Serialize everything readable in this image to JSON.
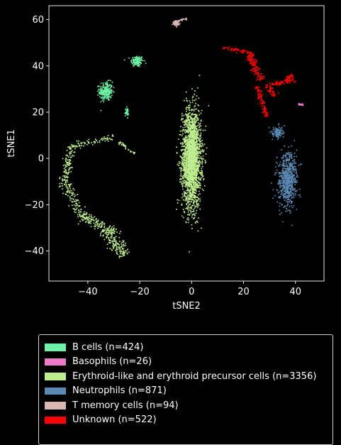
{
  "chart_data": {
    "type": "scatter",
    "title": "",
    "xlabel": "tSNE2",
    "ylabel": "tSNE1",
    "xlim": [
      -55,
      51
    ],
    "ylim": [
      -53,
      66
    ],
    "xticks": [
      "-40",
      "-20",
      "0",
      "20",
      "40"
    ],
    "yticks": [
      "-40",
      "-20",
      "0",
      "20",
      "40",
      "60"
    ],
    "grid": false,
    "legend_position": "below plot",
    "series": [
      {
        "name": "B cells (n=424)",
        "color": "#6ff2a6",
        "n": 424,
        "clusters": [
          {
            "center": [
              -21,
              42
            ],
            "spread": [
              2.2,
              2.2
            ],
            "count": 120
          },
          {
            "center": [
              -33,
              29
            ],
            "spread": [
              2.3,
              3.6
            ],
            "count": 230
          },
          {
            "center": [
              -25,
              20
            ],
            "spread": [
              0.6,
              1.6
            ],
            "count": 40
          }
        ]
      },
      {
        "name": "Basophils (n=26)",
        "color": "#ee7ac8",
        "n": 26,
        "segments": [
          {
            "from": [
              41,
              23.5
            ],
            "to": [
              43,
              23.2
            ],
            "count": 20,
            "width": 0.35
          }
        ]
      },
      {
        "name": "Erythroid-like and erythroid precursor cells (n=3356)",
        "color": "#bfee90",
        "n": 3356,
        "clusters": [
          {
            "center": [
              0,
              0
            ],
            "spread": [
              3.3,
              19
            ],
            "count": 2300
          }
        ],
        "segments": [
          {
            "from": [
              -46,
              6
            ],
            "to": [
              -49,
              -10
            ],
            "count": 120,
            "width": 1.6
          },
          {
            "from": [
              -49,
              -10
            ],
            "to": [
              -42,
              -25
            ],
            "count": 120,
            "width": 1.6
          },
          {
            "from": [
              -42,
              -25
            ],
            "to": [
              -33,
              -30
            ],
            "count": 100,
            "width": 1.8
          },
          {
            "from": [
              -33,
              -30
            ],
            "to": [
              -26,
              -42
            ],
            "count": 200,
            "width": 2.8
          },
          {
            "from": [
              -44,
              6
            ],
            "to": [
              -30,
              9
            ],
            "count": 60,
            "width": 1.2
          },
          {
            "from": [
              -28,
              7
            ],
            "to": [
              -22,
              2
            ],
            "count": 30,
            "width": 0.7
          }
        ]
      },
      {
        "name": "Neutrophils (n=871)",
        "color": "#5b8ab5",
        "n": 871,
        "clusters": [
          {
            "center": [
              37,
              -9
            ],
            "spread": [
              3.2,
              10
            ],
            "count": 680
          },
          {
            "center": [
              33,
              11
            ],
            "spread": [
              2.0,
              2.2
            ],
            "count": 110
          }
        ]
      },
      {
        "name": "T memory cells (n=94)",
        "color": "#d9b7b4",
        "n": 94,
        "clusters": [
          {
            "center": [
              -6,
              58.5
            ],
            "spread": [
              1.0,
              1.0
            ],
            "count": 70
          }
        ],
        "segments": [
          {
            "from": [
              -5,
              59.5
            ],
            "to": [
              -2,
              60.5
            ],
            "count": 20,
            "width": 0.4
          }
        ]
      },
      {
        "name": "Unknown (n=522)",
        "color": "#ff0000",
        "n": 522,
        "segments": [
          {
            "from": [
              12,
              48
            ],
            "to": [
              22,
              46
            ],
            "count": 50,
            "width": 0.7
          },
          {
            "from": [
              22,
              46
            ],
            "to": [
              24,
              40
            ],
            "count": 80,
            "width": 1.4
          },
          {
            "from": [
              24,
              40
            ],
            "to": [
              27,
              34
            ],
            "count": 70,
            "width": 1.3
          },
          {
            "from": [
              25,
              31
            ],
            "to": [
              29,
              18
            ],
            "count": 100,
            "width": 0.9
          },
          {
            "from": [
              29,
              32
            ],
            "to": [
              32,
              27
            ],
            "count": 50,
            "width": 1.2
          },
          {
            "from": [
              31,
              32
            ],
            "to": [
              40,
              34
            ],
            "count": 60,
            "width": 0.8
          },
          {
            "from": [
              36,
              34
            ],
            "to": [
              39,
              36
            ],
            "count": 40,
            "width": 1.0
          }
        ]
      }
    ]
  }
}
